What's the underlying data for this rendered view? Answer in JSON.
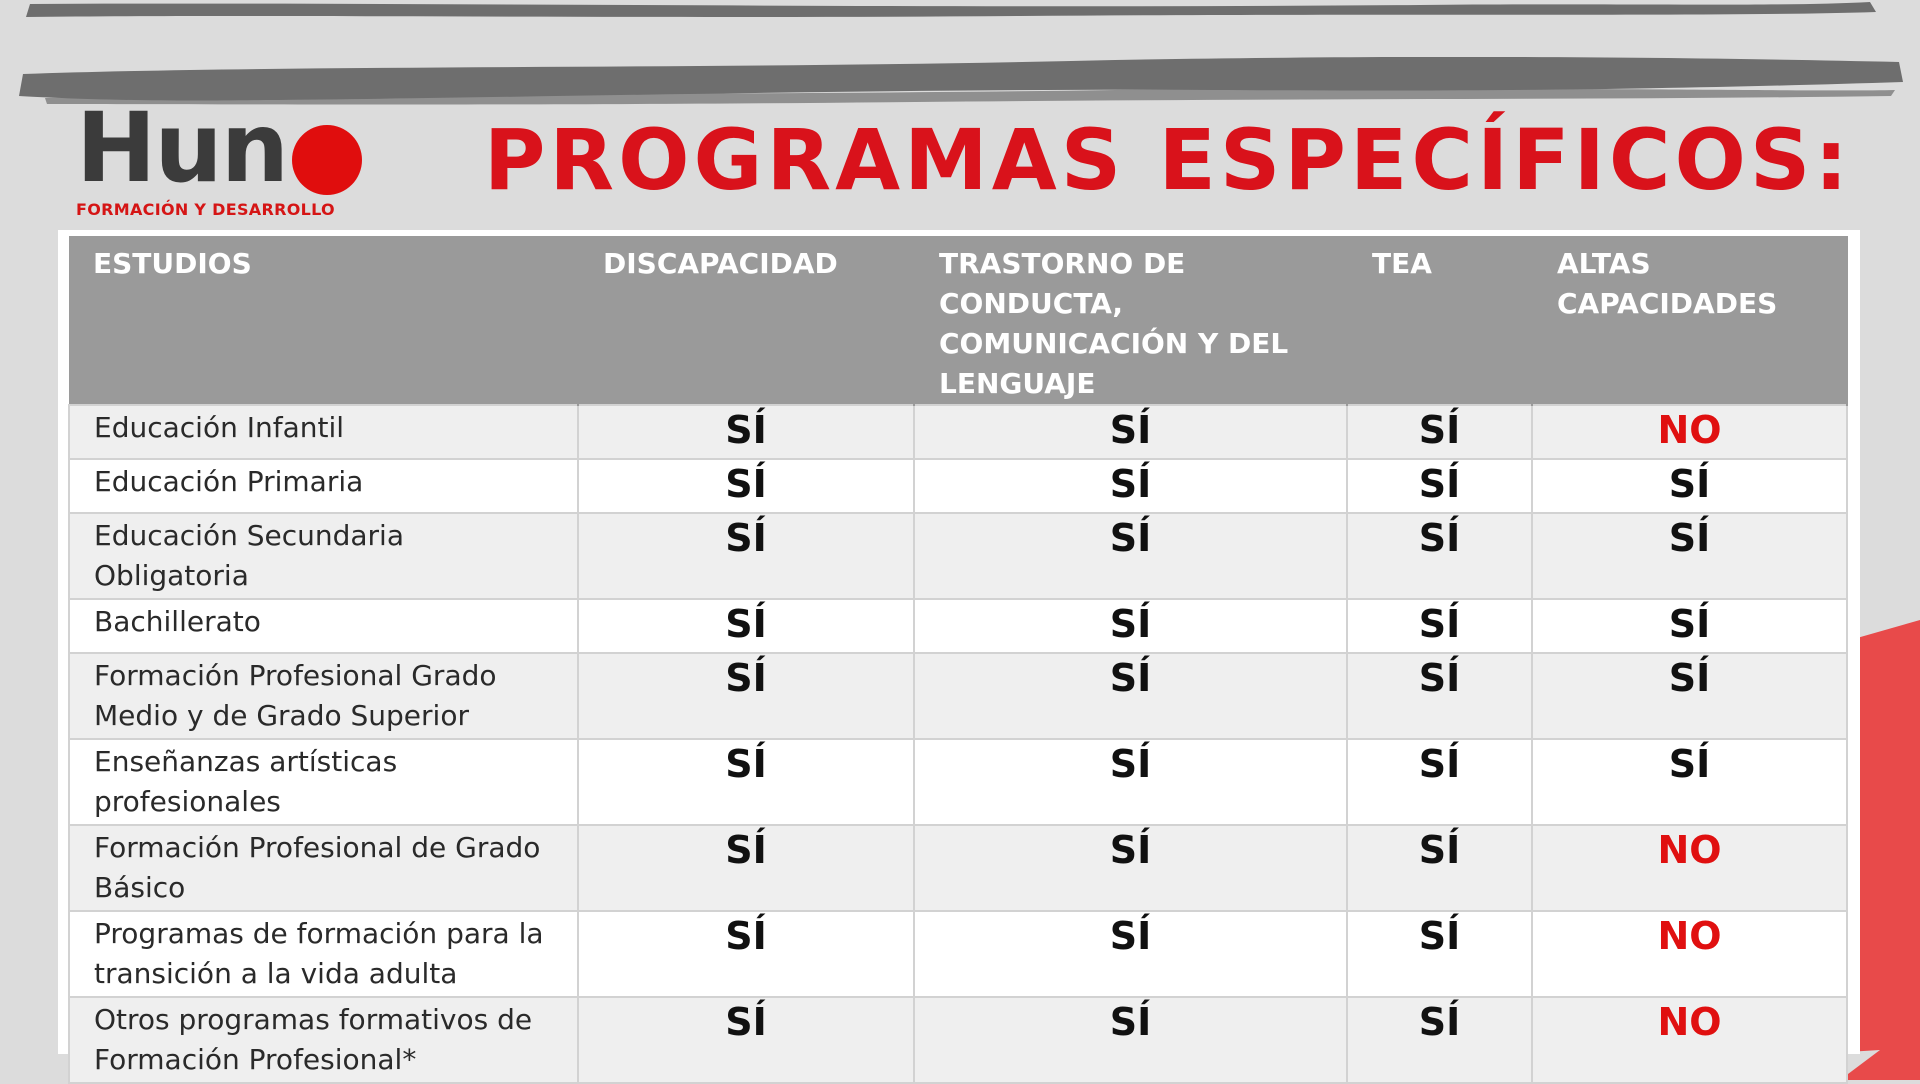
{
  "colors": {
    "background": "#dcdcdc",
    "brush_stroke": "#6e6e6e",
    "accent_red": "#d9121b",
    "logo_dark": "#3b3b3b",
    "header_gray": "#9a9a9a",
    "no_red": "#e01010",
    "corner_red": "#e84a4a"
  },
  "logo": {
    "word": "Hun",
    "dot": "o",
    "tagline": "FORMACIÓN Y DESARROLLO"
  },
  "title": "PROGRAMAS ESPECÍFICOS:",
  "table": {
    "headers": [
      "ESTUDIOS",
      "DISCAPACIDAD",
      "TRASTORNO DE CONDUCTA, COMUNICACIÓN Y DEL LENGUAJE",
      "TEA",
      "ALTAS CAPACIDADES"
    ],
    "rows": [
      {
        "study": "Educación Infantil",
        "discapacidad": "SÍ",
        "trastorno": "SÍ",
        "tea": "SÍ",
        "altas": "NO"
      },
      {
        "study": "Educación Primaria",
        "discapacidad": "SÍ",
        "trastorno": "SÍ",
        "tea": "SÍ",
        "altas": "SÍ"
      },
      {
        "study": "Educación Secundaria Obligatoria",
        "discapacidad": "SÍ",
        "trastorno": "SÍ",
        "tea": "SÍ",
        "altas": "SÍ"
      },
      {
        "study": "Bachillerato",
        "discapacidad": "SÍ",
        "trastorno": "SÍ",
        "tea": "SÍ",
        "altas": "SÍ"
      },
      {
        "study": "Formación Profesional Grado Medio y de Grado Superior",
        "discapacidad": "SÍ",
        "trastorno": "SÍ",
        "tea": "SÍ",
        "altas": "SÍ"
      },
      {
        "study": "Enseñanzas artísticas profesionales",
        "discapacidad": "SÍ",
        "trastorno": "SÍ",
        "tea": "SÍ",
        "altas": "SÍ"
      },
      {
        "study": "Formación Profesional de Grado Básico",
        "discapacidad": "SÍ",
        "trastorno": "SÍ",
        "tea": "SÍ",
        "altas": "NO"
      },
      {
        "study": "Programas de formación para la transición a la vida adulta",
        "discapacidad": "SÍ",
        "trastorno": "SÍ",
        "tea": "SÍ",
        "altas": "NO"
      },
      {
        "study": "Otros programas formativos de Formación Profesional*",
        "discapacidad": "SÍ",
        "trastorno": "SÍ",
        "tea": "SÍ",
        "altas": "NO"
      }
    ]
  }
}
